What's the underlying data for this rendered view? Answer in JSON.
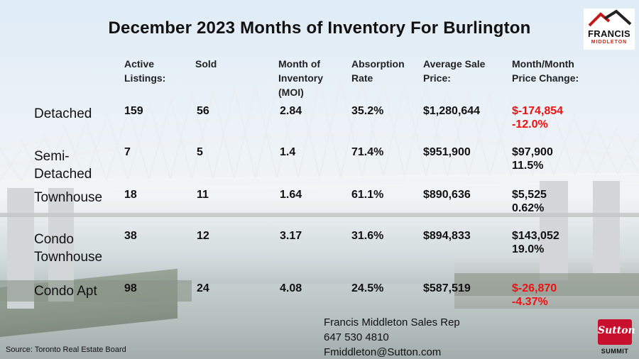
{
  "title": "December 2023 Months of Inventory For Burlington",
  "headers": {
    "active": [
      "Active",
      "Listings:"
    ],
    "sold": [
      "Sold"
    ],
    "moi": [
      "Month of",
      "Inventory",
      "(MOI)"
    ],
    "absorption": [
      "Absorption",
      "Rate"
    ],
    "avg_price": [
      "Average Sale",
      "Price:"
    ],
    "change": [
      "Month/Month",
      "Price Change:"
    ]
  },
  "rows": [
    {
      "label": [
        "Detached"
      ],
      "active": "159",
      "sold": "56",
      "moi": "2.84",
      "absorption": "35.2%",
      "avg_price": "$1,280,644",
      "change_amount": "$-174,854",
      "change_pct": "-12.0%",
      "negative": true
    },
    {
      "label": [
        "Semi-",
        "Detached"
      ],
      "active": "7",
      "sold": "5",
      "moi": "1.4",
      "absorption": "71.4%",
      "avg_price": "$951,900",
      "change_amount": "$97,900",
      "change_pct": "11.5%",
      "negative": false
    },
    {
      "label": [
        "Townhouse"
      ],
      "active": "18",
      "sold": "11",
      "moi": "1.64",
      "absorption": "61.1%",
      "avg_price": "$890,636",
      "change_amount": "$5,525",
      "change_pct": "0.62%",
      "negative": false
    },
    {
      "label": [
        "Condo",
        "Townhouse"
      ],
      "active": "38",
      "sold": "12",
      "moi": "3.17",
      "absorption": "31.6%",
      "avg_price": "$894,833",
      "change_amount": "$143,052",
      "change_pct": "19.0%",
      "negative": false
    },
    {
      "label": [
        "Condo Apt"
      ],
      "active": "98",
      "sold": "24",
      "moi": "4.08",
      "absorption": "24.5%",
      "avg_price": "$587,519",
      "change_amount": "$-26,870",
      "change_pct": "-4.37%",
      "negative": true
    }
  ],
  "contact": {
    "name": "Francis Middleton Sales Rep",
    "phone": "647 530 4810",
    "email": "Fmiddleton@Sutton.com"
  },
  "source": "Source: Toronto Real Estate Board",
  "logo": {
    "name": "FRANCIS",
    "sub": "MIDDLETON"
  },
  "brand": {
    "name": "Sutton",
    "sub": "SUMMIT"
  },
  "colors": {
    "negative": "#e11111",
    "brand_red": "#c8102e"
  }
}
